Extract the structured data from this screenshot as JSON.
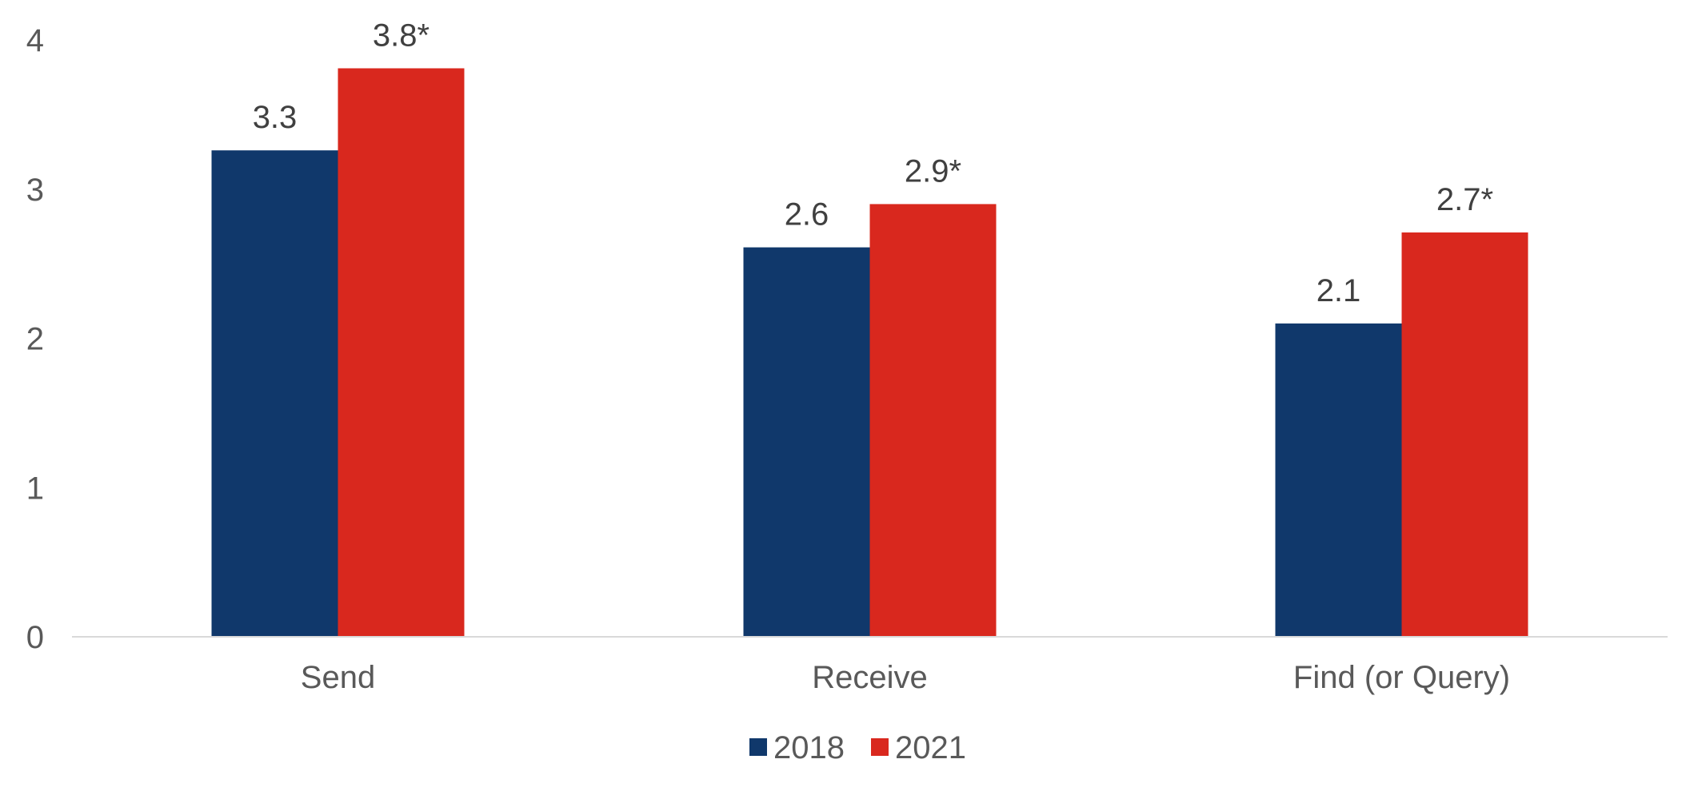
{
  "chart_data": {
    "type": "bar",
    "title": "",
    "xlabel": "",
    "ylabel": "",
    "categories": [
      "Send",
      "Receive",
      "Find (or Query)"
    ],
    "series": [
      {
        "name": "2018",
        "color": "#10386b",
        "values": [
          3.26,
          2.61,
          2.1
        ],
        "labels": [
          "3.3",
          "2.6",
          "2.1"
        ]
      },
      {
        "name": "2021",
        "color": "#d9281e",
        "values": [
          3.81,
          2.9,
          2.71
        ],
        "labels": [
          "3.8*",
          "2.9*",
          "2.7*"
        ]
      }
    ],
    "ylim": [
      0,
      4
    ],
    "yticks": [
      "0",
      "1",
      "2",
      "3",
      "4"
    ],
    "grid": false,
    "legend_position": "bottom",
    "axis_color": "#d9d9d9"
  }
}
